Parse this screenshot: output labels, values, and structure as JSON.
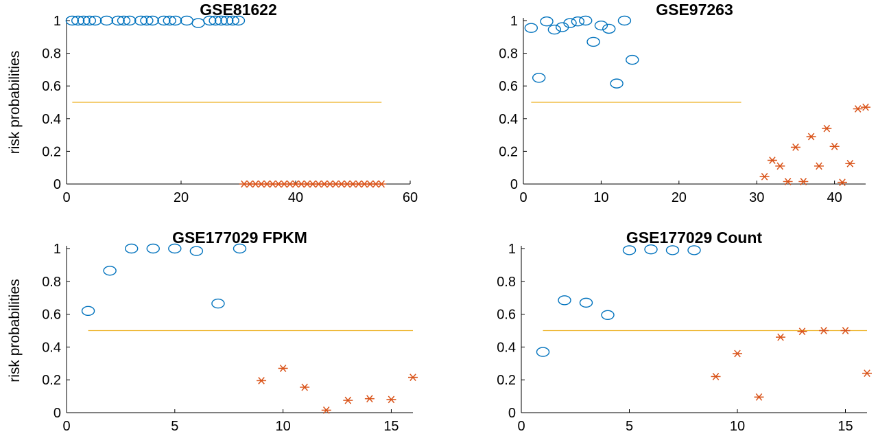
{
  "chart_data": [
    {
      "type": "scatter",
      "title": "GSE81622",
      "xlabel": "",
      "ylabel": "risk probabilities",
      "xlim": [
        0,
        60
      ],
      "ylim": [
        0,
        1
      ],
      "xticks": [
        "0",
        "20",
        "40",
        "60"
      ],
      "yticks": [
        "0",
        "0.2",
        "0.4",
        "0.6",
        "0.8",
        "1"
      ],
      "threshold": {
        "y": 0.5,
        "x_start": 1,
        "x_end": 55
      },
      "series": [
        {
          "marker": "circle",
          "color": "#0072BD",
          "x": [
            1,
            2,
            3,
            4,
            5,
            7,
            9,
            10,
            11,
            13,
            14,
            15,
            17,
            18,
            19,
            21,
            23,
            25,
            26,
            27,
            28,
            29,
            30
          ],
          "y": [
            1,
            1,
            1,
            1,
            1,
            1,
            1,
            1,
            1,
            1,
            1,
            1,
            1,
            1,
            1,
            1,
            0.985,
            1,
            1,
            1,
            1,
            1,
            1
          ]
        },
        {
          "marker": "asterisk",
          "color": "#D95319",
          "x": [
            31,
            32,
            33,
            34,
            35,
            36,
            37,
            38,
            39,
            40,
            41,
            42,
            43,
            44,
            45,
            46,
            47,
            48,
            49,
            50,
            51,
            52,
            53,
            54,
            55
          ],
          "y": [
            0,
            0,
            0,
            0,
            0,
            0,
            0,
            0,
            0,
            0,
            0,
            0,
            0,
            0,
            0,
            0,
            0,
            0,
            0,
            0,
            0,
            0,
            0,
            0,
            0
          ]
        }
      ]
    },
    {
      "type": "scatter",
      "title": "GSE97263",
      "xlabel": "",
      "ylabel": "",
      "xlim": [
        0,
        44
      ],
      "ylim": [
        0,
        1
      ],
      "xticks": [
        "0",
        "10",
        "20",
        "30",
        "40"
      ],
      "yticks": [
        "0",
        "0.2",
        "0.4",
        "0.6",
        "0.8",
        "1"
      ],
      "threshold": {
        "y": 0.5,
        "x_start": 1,
        "x_end": 28
      },
      "series": [
        {
          "marker": "circle",
          "color": "#0072BD",
          "x": [
            1,
            2,
            3,
            4,
            5,
            6,
            7,
            8,
            9,
            10,
            11,
            12,
            13,
            14
          ],
          "y": [
            0.955,
            0.65,
            0.995,
            0.945,
            0.96,
            0.985,
            0.995,
            1.0,
            0.87,
            0.97,
            0.95,
            0.615,
            1.0,
            0.76
          ]
        },
        {
          "marker": "asterisk",
          "color": "#D95319",
          "x": [
            31,
            32,
            33,
            34,
            35,
            36,
            37,
            38,
            39,
            40,
            41,
            42,
            43,
            44
          ],
          "y": [
            0.045,
            0.145,
            0.11,
            0.015,
            0.225,
            0.015,
            0.29,
            0.11,
            0.34,
            0.23,
            0.01,
            0.125,
            0.46,
            0.47
          ]
        }
      ]
    },
    {
      "type": "scatter",
      "title": "GSE177029 FPKM",
      "xlabel": "",
      "ylabel": "risk probabilities",
      "xlim": [
        0,
        16
      ],
      "ylim": [
        0,
        1
      ],
      "xticks": [
        "0",
        "5",
        "10",
        "15"
      ],
      "yticks": [
        "0",
        "0.2",
        "0.4",
        "0.6",
        "0.8",
        "1"
      ],
      "threshold": {
        "y": 0.5,
        "x_start": 1,
        "x_end": 16
      },
      "series": [
        {
          "marker": "circle",
          "color": "#0072BD",
          "x": [
            1,
            2,
            3,
            4,
            5,
            6,
            7,
            8
          ],
          "y": [
            0.62,
            0.865,
            1.0,
            1.0,
            1.0,
            0.985,
            0.665,
            1.0
          ]
        },
        {
          "marker": "asterisk",
          "color": "#D95319",
          "x": [
            9,
            10,
            11,
            12,
            13,
            14,
            15,
            16
          ],
          "y": [
            0.195,
            0.27,
            0.155,
            0.015,
            0.075,
            0.085,
            0.08,
            0.215
          ]
        }
      ]
    },
    {
      "type": "scatter",
      "title": "GSE177029 Count",
      "xlabel": "",
      "ylabel": "",
      "xlim": [
        0,
        16
      ],
      "ylim": [
        0,
        1
      ],
      "xticks": [
        "0",
        "5",
        "10",
        "15"
      ],
      "yticks": [
        "0",
        "0.2",
        "0.4",
        "0.6",
        "0.8",
        "1"
      ],
      "threshold": {
        "y": 0.5,
        "x_start": 1,
        "x_end": 16
      },
      "series": [
        {
          "marker": "circle",
          "color": "#0072BD",
          "x": [
            1,
            2,
            3,
            4,
            5,
            6,
            7,
            8
          ],
          "y": [
            0.37,
            0.685,
            0.67,
            0.595,
            0.99,
            0.995,
            0.99,
            0.99
          ]
        },
        {
          "marker": "asterisk",
          "color": "#D95319",
          "x": [
            9,
            10,
            11,
            12,
            13,
            14,
            15,
            16
          ],
          "y": [
            0.22,
            0.36,
            0.095,
            0.46,
            0.495,
            0.5,
            0.5,
            0.24
          ]
        }
      ]
    }
  ],
  "colors": {
    "positive_markers": "#0072BD",
    "negative_markers": "#D95319",
    "threshold_line": "#EDB120",
    "axes": "#000000",
    "background": "#FFFFFF"
  }
}
